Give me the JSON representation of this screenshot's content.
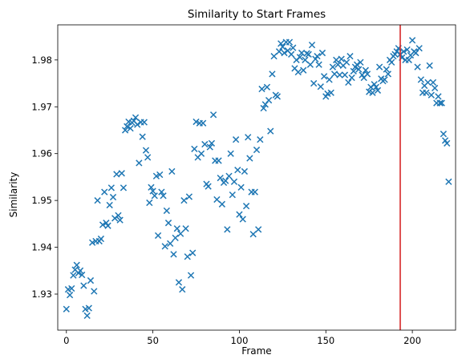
{
  "chart_data": {
    "type": "scatter",
    "title": "Similarity to Start Frames",
    "xlabel": "Frame",
    "ylabel": "Similarity",
    "xlim": [
      -5,
      225
    ],
    "ylim": [
      1.9223,
      1.9875
    ],
    "xticks": [
      0,
      50,
      100,
      150,
      200
    ],
    "yticks": [
      1.93,
      1.94,
      1.95,
      1.96,
      1.97,
      1.98
    ],
    "ytick_format": 2,
    "grid": false,
    "marker": "x",
    "color": "#1f77b4",
    "vline": {
      "x": 193,
      "color": "#d62728"
    },
    "points": [
      [
        0,
        1.9268
      ],
      [
        1,
        1.931
      ],
      [
        2,
        1.9298
      ],
      [
        3,
        1.9312
      ],
      [
        4,
        1.934
      ],
      [
        5,
        1.9352
      ],
      [
        6,
        1.9362
      ],
      [
        7,
        1.9345
      ],
      [
        8,
        1.935
      ],
      [
        9,
        1.9341
      ],
      [
        10,
        1.9318
      ],
      [
        11,
        1.9268
      ],
      [
        12,
        1.9254
      ],
      [
        13,
        1.927
      ],
      [
        14,
        1.9329
      ],
      [
        15,
        1.941
      ],
      [
        16,
        1.9306
      ],
      [
        17,
        1.9413
      ],
      [
        18,
        1.95
      ],
      [
        19,
        1.9413
      ],
      [
        20,
        1.9418
      ],
      [
        21,
        1.9448
      ],
      [
        22,
        1.9518
      ],
      [
        23,
        1.9452
      ],
      [
        24,
        1.9446
      ],
      [
        25,
        1.949
      ],
      [
        26,
        1.9527
      ],
      [
        27,
        1.9507
      ],
      [
        28,
        1.9462
      ],
      [
        29,
        1.9556
      ],
      [
        30,
        1.9468
      ],
      [
        31,
        1.9458
      ],
      [
        32,
        1.9558
      ],
      [
        33,
        1.9527
      ],
      [
        34,
        1.965
      ],
      [
        35,
        1.9658
      ],
      [
        36,
        1.9668
      ],
      [
        37,
        1.9654
      ],
      [
        38,
        1.9666
      ],
      [
        39,
        1.967
      ],
      [
        40,
        1.9677
      ],
      [
        41,
        1.9662
      ],
      [
        42,
        1.958
      ],
      [
        43,
        1.9667
      ],
      [
        44,
        1.9636
      ],
      [
        45,
        1.9667
      ],
      [
        46,
        1.9607
      ],
      [
        47,
        1.9592
      ],
      [
        48,
        1.9495
      ],
      [
        49,
        1.9528
      ],
      [
        50,
        1.952
      ],
      [
        51,
        1.951
      ],
      [
        52,
        1.9552
      ],
      [
        53,
        1.9425
      ],
      [
        54,
        1.9555
      ],
      [
        55,
        1.9518
      ],
      [
        56,
        1.951
      ],
      [
        57,
        1.9402
      ],
      [
        58,
        1.9478
      ],
      [
        59,
        1.9452
      ],
      [
        60,
        1.9408
      ],
      [
        61,
        1.9562
      ],
      [
        62,
        1.9385
      ],
      [
        63,
        1.942
      ],
      [
        64,
        1.944
      ],
      [
        65,
        1.9325
      ],
      [
        66,
        1.9429
      ],
      [
        67,
        1.931
      ],
      [
        68,
        1.95
      ],
      [
        69,
        1.944
      ],
      [
        70,
        1.938
      ],
      [
        71,
        1.9508
      ],
      [
        72,
        1.934
      ],
      [
        73,
        1.9388
      ],
      [
        74,
        1.961
      ],
      [
        75,
        1.9668
      ],
      [
        76,
        1.9592
      ],
      [
        77,
        1.9665
      ],
      [
        78,
        1.96
      ],
      [
        79,
        1.9665
      ],
      [
        80,
        1.962
      ],
      [
        81,
        1.9535
      ],
      [
        82,
        1.953
      ],
      [
        83,
        1.9614
      ],
      [
        84,
        1.9622
      ],
      [
        85,
        1.9683
      ],
      [
        86,
        1.9585
      ],
      [
        87,
        1.9502
      ],
      [
        88,
        1.9585
      ],
      [
        89,
        1.9548
      ],
      [
        90,
        1.9492
      ],
      [
        91,
        1.9538
      ],
      [
        92,
        1.9542
      ],
      [
        93,
        1.9438
      ],
      [
        94,
        1.9552
      ],
      [
        95,
        1.96
      ],
      [
        96,
        1.9512
      ],
      [
        97,
        1.954
      ],
      [
        98,
        1.963
      ],
      [
        99,
        1.9565
      ],
      [
        100,
        1.947
      ],
      [
        101,
        1.9528
      ],
      [
        102,
        1.946
      ],
      [
        103,
        1.9562
      ],
      [
        104,
        1.9488
      ],
      [
        105,
        1.9635
      ],
      [
        106,
        1.959
      ],
      [
        107,
        1.9518
      ],
      [
        108,
        1.9428
      ],
      [
        109,
        1.9518
      ],
      [
        110,
        1.9608
      ],
      [
        111,
        1.9438
      ],
      [
        112,
        1.963
      ],
      [
        113,
        1.9738
      ],
      [
        114,
        1.9697
      ],
      [
        115,
        1.9705
      ],
      [
        116,
        1.9742
      ],
      [
        117,
        1.9714
      ],
      [
        118,
        1.9648
      ],
      [
        119,
        1.977
      ],
      [
        120,
        1.9808
      ],
      [
        121,
        1.9725
      ],
      [
        122,
        1.9722
      ],
      [
        123,
        1.9818
      ],
      [
        124,
        1.9835
      ],
      [
        125,
        1.9828
      ],
      [
        126,
        1.9815
      ],
      [
        127,
        1.9838
      ],
      [
        128,
        1.982
      ],
      [
        129,
        1.9838
      ],
      [
        130,
        1.9812
      ],
      [
        131,
        1.9826
      ],
      [
        132,
        1.9782
      ],
      [
        133,
        1.98
      ],
      [
        134,
        1.9774
      ],
      [
        135,
        1.9806
      ],
      [
        136,
        1.9815
      ],
      [
        137,
        1.9778
      ],
      [
        138,
        1.98
      ],
      [
        139,
        1.9814
      ],
      [
        140,
        1.9812
      ],
      [
        141,
        1.979
      ],
      [
        142,
        1.9832
      ],
      [
        143,
        1.975
      ],
      [
        144,
        1.9802
      ],
      [
        145,
        1.9808
      ],
      [
        146,
        1.979
      ],
      [
        147,
        1.9743
      ],
      [
        148,
        1.9815
      ],
      [
        149,
        1.9765
      ],
      [
        150,
        1.9722
      ],
      [
        151,
        1.9728
      ],
      [
        152,
        1.9758
      ],
      [
        153,
        1.973
      ],
      [
        154,
        1.9785
      ],
      [
        155,
        1.977
      ],
      [
        156,
        1.98
      ],
      [
        157,
        1.979
      ],
      [
        158,
        1.9768
      ],
      [
        159,
        1.9802
      ],
      [
        160,
        1.9788
      ],
      [
        161,
        1.9768
      ],
      [
        162,
        1.9795
      ],
      [
        163,
        1.9752
      ],
      [
        164,
        1.9808
      ],
      [
        165,
        1.9762
      ],
      [
        166,
        1.9776
      ],
      [
        167,
        1.9785
      ],
      [
        168,
        1.979
      ],
      [
        169,
        1.978
      ],
      [
        170,
        1.9795
      ],
      [
        171,
        1.9768
      ],
      [
        172,
        1.9762
      ],
      [
        173,
        1.9778
      ],
      [
        174,
        1.977
      ],
      [
        175,
        1.9732
      ],
      [
        176,
        1.9742
      ],
      [
        177,
        1.973
      ],
      [
        178,
        1.9748
      ],
      [
        179,
        1.9742
      ],
      [
        180,
        1.9735
      ],
      [
        181,
        1.9785
      ],
      [
        182,
        1.976
      ],
      [
        183,
        1.9755
      ],
      [
        184,
        1.9758
      ],
      [
        185,
        1.978
      ],
      [
        186,
        1.977
      ],
      [
        187,
        1.98
      ],
      [
        188,
        1.9795
      ],
      [
        189,
        1.9808
      ],
      [
        190,
        1.9812
      ],
      [
        191,
        1.9818
      ],
      [
        192,
        1.9825
      ],
      [
        193,
        1.9812
      ],
      [
        194,
        1.9805
      ],
      [
        195,
        1.9818
      ],
      [
        196,
        1.98
      ],
      [
        197,
        1.9822
      ],
      [
        198,
        1.98
      ],
      [
        199,
        1.981
      ],
      [
        200,
        1.9842
      ],
      [
        201,
        1.9818
      ],
      [
        202,
        1.9815
      ],
      [
        203,
        1.9785
      ],
      [
        204,
        1.9825
      ],
      [
        205,
        1.9758
      ],
      [
        206,
        1.973
      ],
      [
        207,
        1.9745
      ],
      [
        208,
        1.973
      ],
      [
        209,
        1.9752
      ],
      [
        210,
        1.9788
      ],
      [
        211,
        1.9725
      ],
      [
        212,
        1.9752
      ],
      [
        213,
        1.974
      ],
      [
        214,
        1.9708
      ],
      [
        215,
        1.9722
      ],
      [
        216,
        1.9708
      ],
      [
        217,
        1.9708
      ],
      [
        218,
        1.9642
      ],
      [
        219,
        1.9628
      ],
      [
        220,
        1.9622
      ],
      [
        221,
        1.954
      ]
    ]
  }
}
